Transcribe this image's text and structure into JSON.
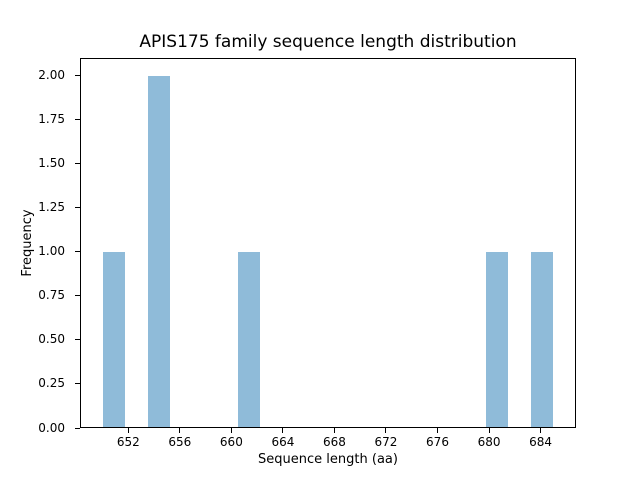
{
  "figure": {
    "background": "#ffffff",
    "text_color": "#000000"
  },
  "chart_data": {
    "type": "bar",
    "title": "APIS175 family sequence length distribution",
    "xlabel": "Sequence length (aa)",
    "ylabel": "Frequency",
    "xlim": [
      648.25,
      686.75
    ],
    "ylim": [
      0,
      2.1
    ],
    "grid": false,
    "legend": "none",
    "bar_color": "#8fbbd9",
    "x_ticks": [
      {
        "value": 652,
        "label": "652"
      },
      {
        "value": 656,
        "label": "656"
      },
      {
        "value": 660,
        "label": "660"
      },
      {
        "value": 664,
        "label": "664"
      },
      {
        "value": 668,
        "label": "668"
      },
      {
        "value": 672,
        "label": "672"
      },
      {
        "value": 676,
        "label": "676"
      },
      {
        "value": 680,
        "label": "680"
      },
      {
        "value": 684,
        "label": "684"
      }
    ],
    "y_ticks": [
      {
        "value": 0.0,
        "label": "0.00"
      },
      {
        "value": 0.25,
        "label": "0.25"
      },
      {
        "value": 0.5,
        "label": "0.50"
      },
      {
        "value": 0.75,
        "label": "0.75"
      },
      {
        "value": 1.0,
        "label": "1.00"
      },
      {
        "value": 1.25,
        "label": "1.25"
      },
      {
        "value": 1.5,
        "label": "1.50"
      },
      {
        "value": 1.75,
        "label": "1.75"
      },
      {
        "value": 2.0,
        "label": "2.00"
      }
    ],
    "bars": [
      {
        "bin_start": 650.0,
        "bin_end": 651.75,
        "frequency": 1
      },
      {
        "bin_start": 653.5,
        "bin_end": 655.25,
        "frequency": 2
      },
      {
        "bin_start": 660.5,
        "bin_end": 662.25,
        "frequency": 1
      },
      {
        "bin_start": 679.75,
        "bin_end": 681.5,
        "frequency": 1
      },
      {
        "bin_start": 683.25,
        "bin_end": 685.0,
        "frequency": 1
      }
    ]
  }
}
